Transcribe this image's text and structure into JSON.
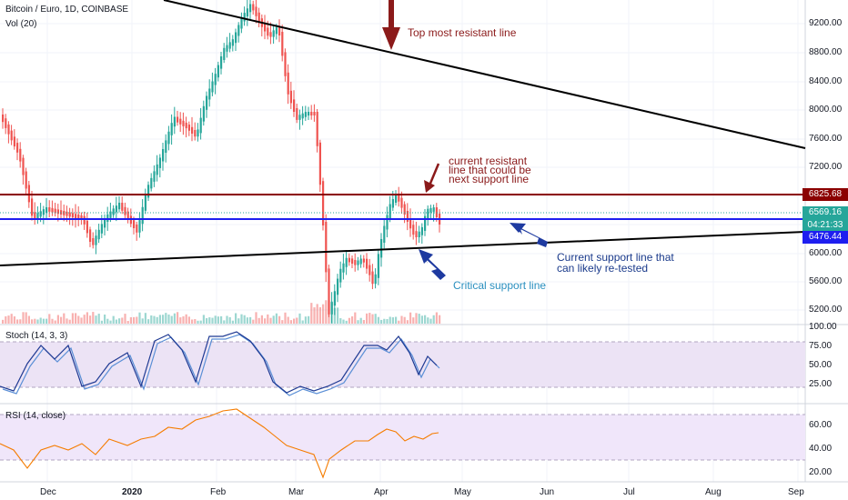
{
  "header": {
    "symbol_title": "Bitcoin / Euro, 1D, COINBASE",
    "volume_label": "Vol (20)"
  },
  "panes": {
    "stoch_label": "Stoch (14, 3, 3)",
    "rsi_label": "RSI (14, close)"
  },
  "price_axis": {
    "ticks": [
      "9200.00",
      "8800.00",
      "8400.00",
      "8000.00",
      "7600.00",
      "7200.00",
      "6000.00",
      "5600.00",
      "5200.00"
    ]
  },
  "stoch_axis": {
    "ticks": [
      "100.00",
      "75.00",
      "50.00",
      "25.00"
    ]
  },
  "rsi_axis": {
    "ticks": [
      "60.00",
      "40.00",
      "20.00"
    ]
  },
  "price_tags": {
    "resistance": "6825.68",
    "last_price": "6569.16",
    "countdown": "04:21:33",
    "support": "6476.44"
  },
  "time_axis": {
    "labels": [
      "Dec",
      "2020",
      "Feb",
      "Mar",
      "Apr",
      "May",
      "Jun",
      "Jul",
      "Aug",
      "Sep"
    ]
  },
  "annotations": {
    "top_resistant": "Top most resistant line",
    "current_resistant_1": "current resistant",
    "current_resistant_2": "line that could be",
    "current_resistant_3": "next support line",
    "current_support_1": "Current support line that",
    "current_support_2": "can likely re-tested",
    "critical_support": "Critical support line"
  },
  "colors": {
    "bull": "#26a69a",
    "bear": "#ef5350",
    "resistance_line": "#8b0000",
    "support_line": "#1e1ef0",
    "annotation_red": "#8b1a1a",
    "annotation_blue": "#1a3a8b",
    "annotation_cyan": "#2a8fbf",
    "stoch_k": "#1f3a93",
    "stoch_d": "#5b8fd6",
    "rsi_line": "#f57c00",
    "band_fill": "#ece3f5",
    "last_price_tag": "#26a69a",
    "countdown_tag": "#26a69a"
  }
}
